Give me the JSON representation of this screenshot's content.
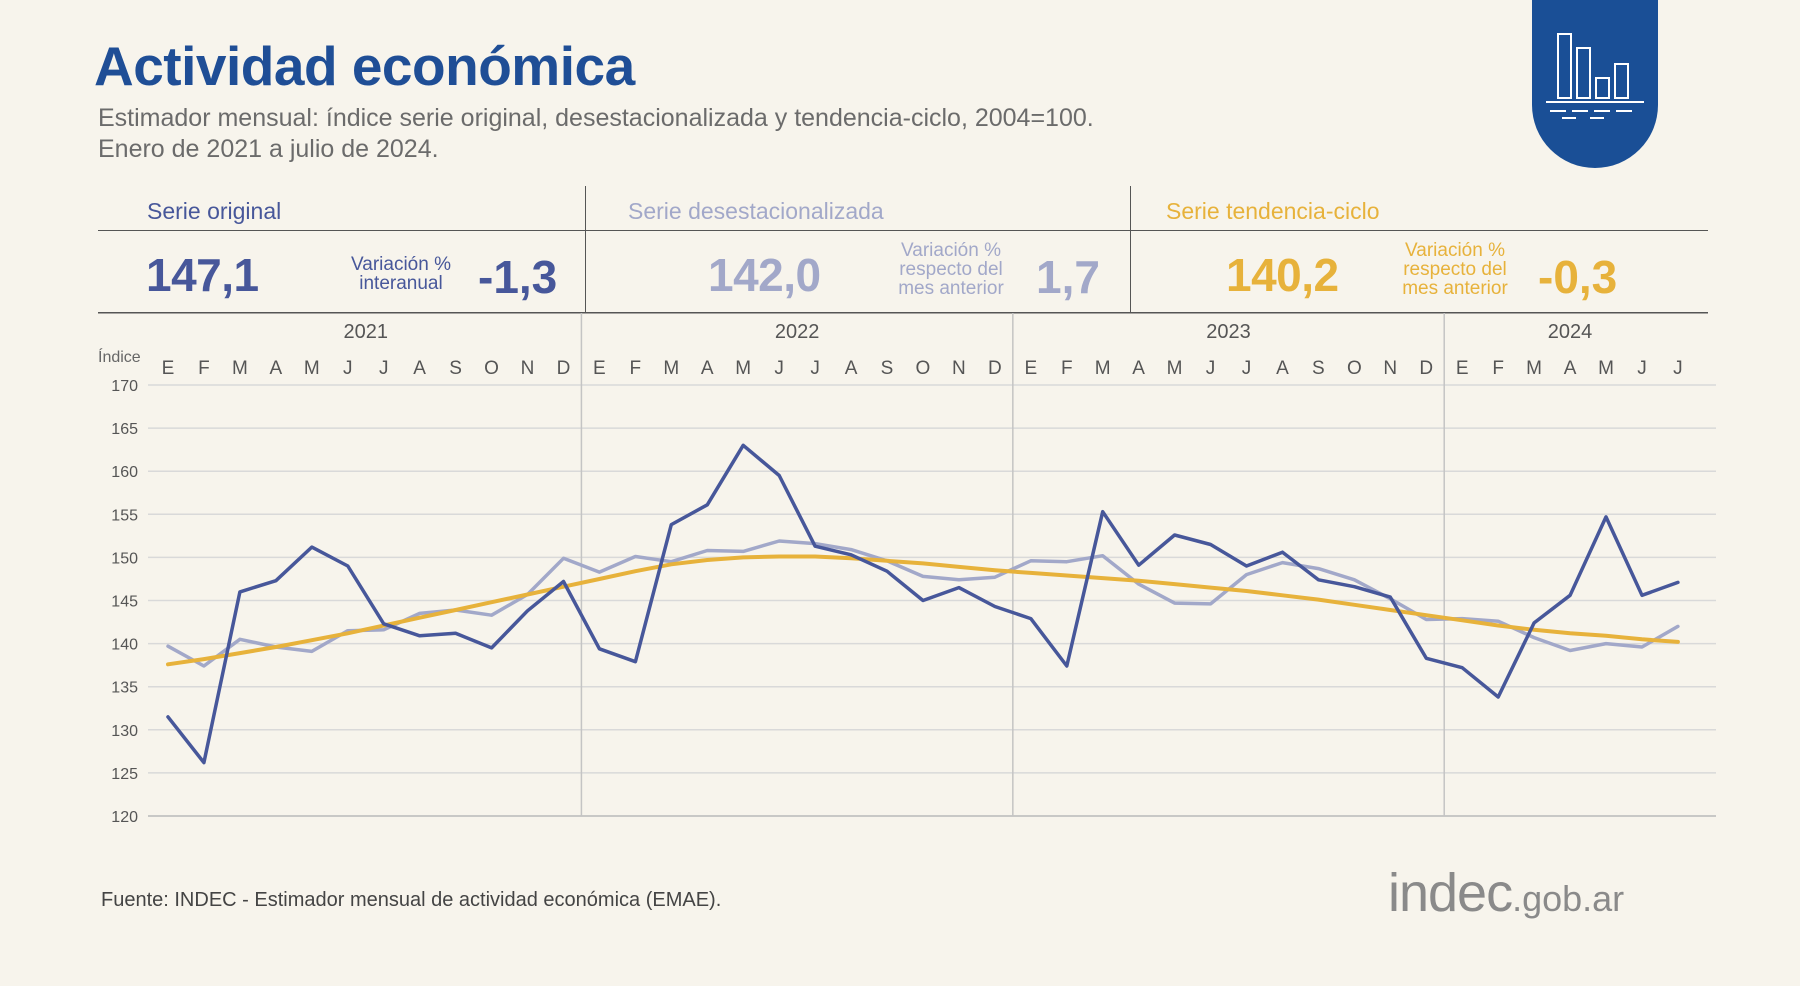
{
  "header": {
    "title": "Actividad económica",
    "subtitle_line1": "Estimador mensual: índice serie original, desestacionalizada y tendencia-ciclo, 2004=100.",
    "subtitle_line2": "Enero de 2021 a julio de 2024."
  },
  "summary": {
    "original": {
      "label": "Serie original",
      "value": "147,1",
      "var_line1": "Variación %",
      "var_line2": "interanual",
      "var_value": "-1,3"
    },
    "desestacionalizada": {
      "label": "Serie desestacionalizada",
      "value": "142,0",
      "var_line1": "Variación %",
      "var_line2": "respecto del",
      "var_line3": "mes anterior",
      "var_value": "1,7"
    },
    "tendencia": {
      "label": "Serie tendencia-ciclo",
      "value": "140,2",
      "var_line1": "Variación %",
      "var_line2": "respecto del",
      "var_line3": "mes anterior",
      "var_value": "-0,3"
    }
  },
  "colors": {
    "title": "#1f4e96",
    "original": "#47579a",
    "desestacionalizada": "#a2a8c9",
    "tendencia": "#e7b23b",
    "background": "#f7f4ec"
  },
  "footer": {
    "source": "Fuente: INDEC - Estimador mensual de actividad económica (EMAE).",
    "brand_main": "indec",
    "brand_domain": ".gob.ar"
  },
  "logo_icon": "bar-chart-icon",
  "chart_data": {
    "type": "line",
    "ylabel": "Índice",
    "ylim": [
      120,
      170
    ],
    "yticks": [
      120,
      125,
      130,
      135,
      140,
      145,
      150,
      155,
      160,
      165,
      170
    ],
    "grid": true,
    "years": [
      {
        "label": "2021",
        "months": 12
      },
      {
        "label": "2022",
        "months": 12
      },
      {
        "label": "2023",
        "months": 12
      },
      {
        "label": "2024",
        "months": 7
      }
    ],
    "categories": [
      "E",
      "F",
      "M",
      "A",
      "M",
      "J",
      "J",
      "A",
      "S",
      "O",
      "N",
      "D",
      "E",
      "F",
      "M",
      "A",
      "M",
      "J",
      "J",
      "A",
      "S",
      "O",
      "N",
      "D",
      "E",
      "F",
      "M",
      "A",
      "M",
      "J",
      "J",
      "A",
      "S",
      "O",
      "N",
      "D",
      "E",
      "F",
      "M",
      "A",
      "M",
      "J",
      "J"
    ],
    "series": [
      {
        "name": "Serie original",
        "color": "#47579a",
        "values": [
          131.5,
          126.2,
          146.0,
          147.3,
          151.2,
          149.0,
          142.3,
          140.9,
          141.2,
          139.5,
          143.8,
          147.2,
          139.4,
          137.9,
          153.8,
          156.1,
          163.0,
          159.5,
          151.3,
          150.3,
          148.4,
          145.0,
          146.5,
          144.3,
          142.9,
          137.4,
          155.3,
          149.1,
          152.6,
          151.5,
          149.0,
          150.6,
          147.4,
          146.6,
          145.4,
          138.3,
          137.2,
          133.8,
          142.4,
          145.6,
          154.7,
          145.6,
          147.1
        ]
      },
      {
        "name": "Serie desestacionalizada",
        "color": "#a2a8c9",
        "values": [
          139.7,
          137.4,
          140.5,
          139.6,
          139.1,
          141.5,
          141.6,
          143.5,
          143.9,
          143.3,
          145.7,
          149.9,
          148.3,
          150.1,
          149.5,
          150.8,
          150.7,
          151.9,
          151.6,
          150.9,
          149.6,
          147.8,
          147.4,
          147.7,
          149.6,
          149.5,
          150.2,
          146.9,
          144.7,
          144.6,
          148.0,
          149.4,
          148.7,
          147.4,
          145.2,
          142.8,
          142.9,
          142.6,
          140.7,
          139.2,
          140.0,
          139.6,
          142.0
        ]
      },
      {
        "name": "Serie tendencia-ciclo",
        "color": "#e7b23b",
        "values": [
          137.6,
          138.2,
          138.9,
          139.6,
          140.4,
          141.2,
          142.1,
          143.0,
          143.9,
          144.8,
          145.7,
          146.6,
          147.5,
          148.4,
          149.2,
          149.7,
          150.0,
          150.1,
          150.1,
          149.9,
          149.6,
          149.3,
          148.9,
          148.5,
          148.2,
          147.9,
          147.6,
          147.3,
          146.9,
          146.5,
          146.1,
          145.6,
          145.1,
          144.5,
          143.9,
          143.3,
          142.7,
          142.1,
          141.6,
          141.2,
          140.9,
          140.5,
          140.2
        ]
      }
    ]
  }
}
